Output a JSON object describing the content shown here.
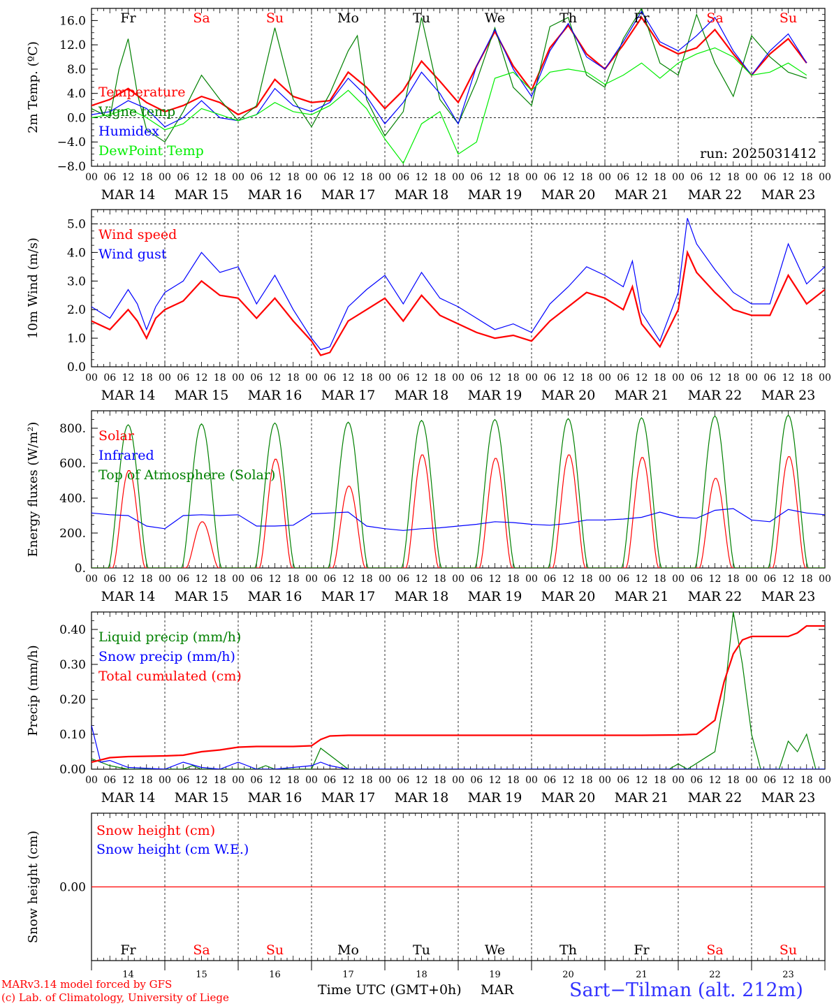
{
  "meta": {
    "run_label": "run: 2025031412",
    "model_line": "MARv3.14 model forced by GFS",
    "copyright_line": "(c) Lab. of Climatology, University of Liege",
    "station": "Sart−Tilman (alt. 212m)",
    "time_axis_label": "Time UTC (GMT+0h)",
    "month_label": "MAR"
  },
  "colors": {
    "red": "#ff0000",
    "green": "#008000",
    "blue": "#0000ff",
    "lime": "#00ee00",
    "axis": "#000000"
  },
  "days": {
    "top_labels": [
      "Fr",
      "Sa",
      "Su",
      "Mo",
      "Tu",
      "We",
      "Th",
      "Fr",
      "Sa",
      "Su"
    ],
    "weekend_flags": [
      false,
      true,
      true,
      false,
      false,
      false,
      false,
      false,
      true,
      true
    ],
    "dates": [
      "MAR 14",
      "MAR 15",
      "MAR 16",
      "MAR 17",
      "MAR 18",
      "MAR 19",
      "MAR 20",
      "MAR 21",
      "MAR 22",
      "MAR 23"
    ],
    "day_numbers": [
      "14",
      "15",
      "16",
      "17",
      "18",
      "19",
      "20",
      "21",
      "22",
      "23"
    ],
    "hour_labels": [
      "00",
      "06",
      "12",
      "18"
    ],
    "final_hour_label": "00"
  },
  "chart_data": [
    {
      "type": "line",
      "ylabel": "2m Temp. (ºC)",
      "ylim": [
        -8,
        18
      ],
      "ytick_values": [
        -8,
        -4,
        0,
        4,
        8,
        12,
        16
      ],
      "ytick_labels": [
        "−8.0",
        "−4.0",
        "0.0",
        "4.0",
        "8.0",
        "12.0",
        "16.0"
      ],
      "ref_line": 0,
      "x_unit": "hours since MAR 14 00 UTC",
      "series": [
        {
          "name": "Temperature",
          "color": "red",
          "x": [
            0,
            6,
            12,
            18,
            24,
            30,
            36,
            42,
            48,
            54,
            60,
            66,
            72,
            78,
            84,
            90,
            96,
            102,
            108,
            114,
            120,
            126,
            132,
            138,
            144,
            150,
            156,
            162,
            168,
            174,
            180,
            186,
            192,
            198,
            204,
            210,
            216,
            222,
            228,
            234
          ],
          "y": [
            2.0,
            3.0,
            4.8,
            2.5,
            1.0,
            2.0,
            3.5,
            2.5,
            0.5,
            1.8,
            6.3,
            3.5,
            2.5,
            2.8,
            7.5,
            5.0,
            1.5,
            4.5,
            9.3,
            6.0,
            2.5,
            8.5,
            14.2,
            8.5,
            4.5,
            11.5,
            15.2,
            10.5,
            8.0,
            12.0,
            16.5,
            12.0,
            10.5,
            11.5,
            14.5,
            10.5,
            7.0,
            10.5,
            13.0,
            9.0
          ]
        },
        {
          "name": "Vigne temp",
          "color": "green",
          "x": [
            0,
            6,
            9,
            12,
            15,
            18,
            24,
            30,
            36,
            42,
            48,
            54,
            60,
            66,
            72,
            78,
            84,
            87,
            90,
            96,
            102,
            108,
            114,
            120,
            126,
            132,
            138,
            144,
            150,
            156,
            162,
            168,
            174,
            180,
            186,
            192,
            198,
            204,
            210,
            216,
            222,
            228,
            234
          ],
          "y": [
            1.5,
            0,
            8,
            13,
            4,
            -2,
            -4,
            1,
            7,
            3,
            -0.5,
            2,
            14.8,
            3,
            -1.5,
            4,
            11,
            13.5,
            3,
            -3,
            1,
            16.5,
            3,
            -1,
            6,
            14.8,
            5,
            2,
            15,
            16.5,
            7,
            5,
            13,
            18,
            9,
            7,
            17,
            9,
            3.5,
            13.5,
            10,
            7.5,
            6.5
          ]
        },
        {
          "name": "Humidex",
          "color": "blue",
          "x": [
            0,
            6,
            12,
            18,
            24,
            30,
            36,
            42,
            48,
            54,
            60,
            66,
            72,
            78,
            84,
            90,
            96,
            102,
            108,
            114,
            120,
            126,
            132,
            138,
            144,
            150,
            156,
            162,
            168,
            174,
            180,
            186,
            192,
            198,
            204,
            210,
            216,
            222,
            228,
            234
          ],
          "y": [
            0.5,
            1.0,
            2.8,
            1.5,
            -1.5,
            0,
            2.8,
            0,
            -0.5,
            0.5,
            4.8,
            2.0,
            1.0,
            2.5,
            6.5,
            3.5,
            -1.0,
            2.5,
            7.5,
            4.0,
            -1.0,
            8.5,
            14.5,
            8.0,
            3.5,
            11.0,
            15.5,
            10.0,
            8.0,
            12.5,
            17.5,
            12.5,
            11.0,
            13.5,
            16.5,
            11.0,
            7.0,
            11.0,
            13.8,
            9.0
          ]
        },
        {
          "name": "DewPoint Temp",
          "color": "lime",
          "x": [
            0,
            6,
            12,
            18,
            24,
            30,
            36,
            42,
            48,
            54,
            60,
            66,
            72,
            78,
            84,
            90,
            96,
            102,
            108,
            114,
            120,
            126,
            132,
            138,
            144,
            150,
            156,
            162,
            168,
            174,
            180,
            186,
            192,
            198,
            204,
            210,
            216,
            222,
            228,
            234
          ],
          "y": [
            0,
            0.5,
            1.5,
            0,
            -2,
            -1,
            1.5,
            0.5,
            -0.5,
            0.5,
            2.5,
            1.0,
            0.5,
            2.0,
            4.5,
            1.5,
            -3.5,
            -7.5,
            -1.0,
            1.0,
            -6.0,
            -4.0,
            6.5,
            7.5,
            4.5,
            7.5,
            8.0,
            7.5,
            5.5,
            7.0,
            9.0,
            6.5,
            9.0,
            10.5,
            11.5,
            10.0,
            7.0,
            7.5,
            9.0,
            7.0
          ]
        }
      ]
    },
    {
      "type": "line",
      "ylabel": "10m Wind (m/s)",
      "ylim": [
        0,
        5.5
      ],
      "ytick_values": [
        0,
        1,
        2,
        3,
        4,
        5
      ],
      "ytick_labels": [
        "0.0",
        "1.0",
        "2.0",
        "3.0",
        "4.0",
        "5.0"
      ],
      "ref_line": 5,
      "x_unit": "hours since MAR 14 00 UTC",
      "series": [
        {
          "name": "Wind speed",
          "color": "red",
          "x": [
            0,
            6,
            12,
            15,
            18,
            21,
            24,
            30,
            36,
            42,
            48,
            54,
            60,
            66,
            72,
            75,
            78,
            84,
            90,
            96,
            102,
            108,
            114,
            120,
            126,
            132,
            138,
            144,
            150,
            156,
            162,
            168,
            174,
            177,
            180,
            186,
            192,
            195,
            198,
            204,
            210,
            216,
            222,
            228,
            234,
            240
          ],
          "y": [
            1.6,
            1.3,
            2.0,
            1.6,
            1.0,
            1.7,
            2.0,
            2.3,
            3.0,
            2.5,
            2.4,
            1.7,
            2.4,
            1.6,
            0.9,
            0.4,
            0.5,
            1.6,
            2.0,
            2.4,
            1.6,
            2.5,
            1.8,
            1.5,
            1.2,
            1.0,
            1.1,
            0.9,
            1.6,
            2.1,
            2.6,
            2.4,
            2.0,
            2.8,
            1.5,
            0.7,
            2.0,
            4.0,
            3.3,
            2.6,
            2.0,
            1.8,
            1.8,
            3.2,
            2.2,
            2.7
          ]
        },
        {
          "name": "Wind gust",
          "color": "blue",
          "x": [
            0,
            6,
            12,
            15,
            18,
            21,
            24,
            30,
            36,
            42,
            48,
            54,
            60,
            66,
            72,
            75,
            78,
            84,
            90,
            96,
            102,
            108,
            114,
            120,
            126,
            132,
            138,
            144,
            150,
            156,
            162,
            168,
            174,
            177,
            180,
            186,
            192,
            195,
            198,
            204,
            210,
            216,
            222,
            228,
            234,
            240
          ],
          "y": [
            2.1,
            1.7,
            2.7,
            2.2,
            1.3,
            2.1,
            2.6,
            3.0,
            4.0,
            3.3,
            3.5,
            2.2,
            3.2,
            2.0,
            1.0,
            0.6,
            0.7,
            2.1,
            2.7,
            3.2,
            2.2,
            3.3,
            2.4,
            2.1,
            1.7,
            1.3,
            1.5,
            1.2,
            2.2,
            2.8,
            3.5,
            3.2,
            2.8,
            3.7,
            1.9,
            0.9,
            2.6,
            5.2,
            4.3,
            3.4,
            2.6,
            2.2,
            2.2,
            4.3,
            2.9,
            3.5
          ]
        }
      ]
    },
    {
      "type": "line",
      "ylabel": "Energy fluxes (W/m²)",
      "ylim": [
        0,
        900
      ],
      "ytick_values": [
        0,
        200,
        400,
        600,
        800
      ],
      "ytick_labels": [
        "0.",
        "200.",
        "400.",
        "600.",
        "800."
      ],
      "x_unit": "hours since MAR 14 00 UTC",
      "series": [
        {
          "name": "Solar",
          "color": "red",
          "day_peaks": [
            560,
            265,
            625,
            470,
            650,
            630,
            650,
            635,
            515,
            640
          ]
        },
        {
          "name": "Infrared",
          "color": "blue",
          "x": [
            0,
            6,
            12,
            18,
            24,
            30,
            36,
            42,
            48,
            54,
            60,
            66,
            72,
            78,
            84,
            90,
            96,
            102,
            108,
            114,
            120,
            126,
            132,
            138,
            144,
            150,
            156,
            162,
            168,
            174,
            180,
            186,
            192,
            198,
            204,
            210,
            216,
            222,
            228,
            234,
            240
          ],
          "y": [
            315,
            305,
            300,
            240,
            225,
            300,
            305,
            300,
            305,
            240,
            240,
            245,
            310,
            315,
            320,
            240,
            225,
            215,
            225,
            230,
            240,
            250,
            265,
            260,
            250,
            245,
            255,
            275,
            275,
            280,
            290,
            320,
            290,
            285,
            330,
            340,
            275,
            265,
            335,
            315,
            305
          ]
        },
        {
          "name": "Top of Atmosphere (Solar)",
          "color": "green",
          "day_peaks": [
            820,
            825,
            830,
            835,
            845,
            850,
            855,
            860,
            870,
            875
          ]
        }
      ]
    },
    {
      "type": "line",
      "ylabel": "Precip (mm/h)",
      "ylim": [
        0,
        0.45
      ],
      "ytick_values": [
        0,
        0.1,
        0.2,
        0.3,
        0.4
      ],
      "ytick_labels": [
        "0.00",
        "0.10",
        "0.20",
        "0.30",
        "0.40"
      ],
      "x_unit": "hours since MAR 14 00 UTC",
      "series": [
        {
          "name": "Liquid precip (mm/h)",
          "color": "green",
          "x": [
            0,
            3,
            6,
            9,
            12,
            30,
            33,
            36,
            54,
            57,
            60,
            72,
            75,
            78,
            84,
            189,
            192,
            195,
            204,
            207,
            210,
            213,
            216,
            219,
            222,
            225,
            228,
            231,
            234,
            237,
            240
          ],
          "y": [
            0.03,
            0.02,
            0.01,
            0.005,
            0,
            0,
            0.01,
            0,
            0,
            0.01,
            0,
            0,
            0.06,
            0.04,
            0,
            0,
            0.015,
            0,
            0.05,
            0.2,
            0.45,
            0.3,
            0.1,
            0,
            0,
            0,
            0.08,
            0.05,
            0.1,
            0,
            0
          ]
        },
        {
          "name": "Snow precip (mm/h)",
          "color": "blue",
          "x": [
            0,
            3,
            6,
            12,
            24,
            30,
            36,
            42,
            48,
            54,
            60,
            72,
            75,
            78,
            84,
            240
          ],
          "y": [
            0.125,
            0.02,
            0.025,
            0.005,
            0,
            0.02,
            0.005,
            0,
            0.02,
            0,
            0,
            0.01,
            0.02,
            0.01,
            0,
            0
          ]
        },
        {
          "name": "Total cumulated (cm)",
          "color": "red",
          "x": [
            0,
            6,
            12,
            18,
            24,
            30,
            36,
            42,
            48,
            54,
            60,
            66,
            72,
            75,
            78,
            84,
            96,
            120,
            150,
            180,
            192,
            198,
            204,
            207,
            210,
            213,
            216,
            222,
            228,
            231,
            234,
            240
          ],
          "y": [
            0.02,
            0.033,
            0.036,
            0.037,
            0.038,
            0.04,
            0.05,
            0.055,
            0.063,
            0.065,
            0.065,
            0.065,
            0.067,
            0.085,
            0.095,
            0.097,
            0.097,
            0.097,
            0.097,
            0.097,
            0.098,
            0.1,
            0.14,
            0.25,
            0.33,
            0.37,
            0.38,
            0.38,
            0.38,
            0.39,
            0.41,
            0.41
          ]
        }
      ]
    },
    {
      "type": "line",
      "ylabel": "Snow height (cm)",
      "ylim": [
        -1,
        1
      ],
      "ytick_values": [
        0
      ],
      "ytick_labels": [
        "0.00"
      ],
      "x_unit": "hours since MAR 14 00 UTC",
      "series": [
        {
          "name": "Snow height (cm)",
          "color": "red",
          "x": [
            0,
            240
          ],
          "y": [
            0,
            0
          ]
        },
        {
          "name": "Snow height (cm W.E.)",
          "color": "blue",
          "x": [],
          "y": []
        }
      ]
    }
  ]
}
